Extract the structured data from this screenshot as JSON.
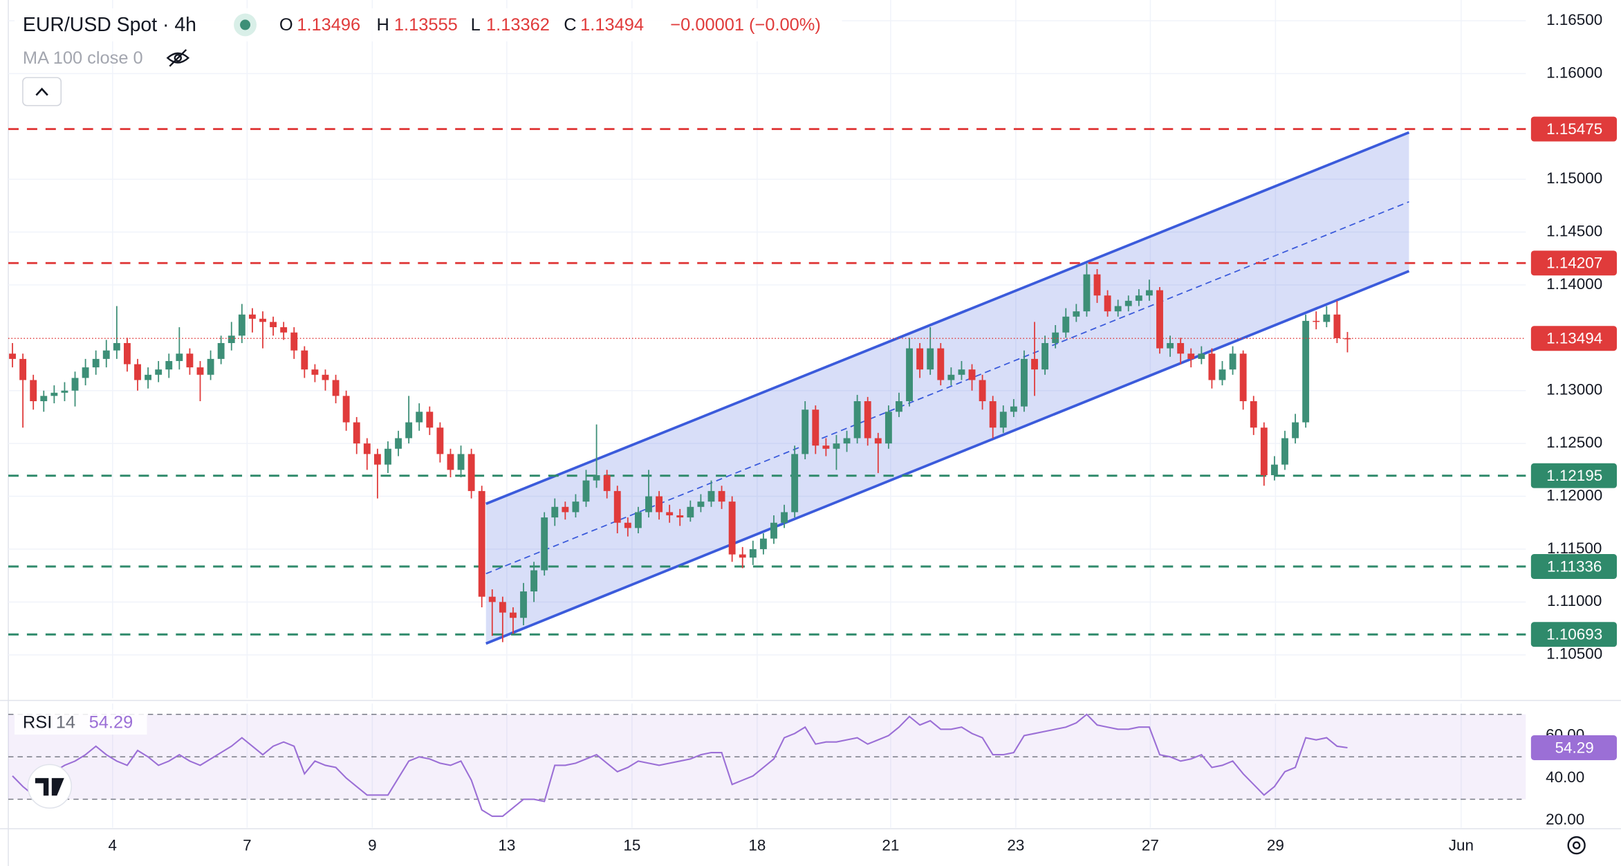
{
  "chart_data": {
    "type": "candlestick",
    "title": "EUR/USD Spot · 4h",
    "indicator_label": "MA 100 close 0",
    "header_letters": [
      "O",
      "H",
      "L",
      "C"
    ],
    "change": "−0.00001 (−0.00%)",
    "up_color": "#3d8f77",
    "down_color": "#e03b3b",
    "x": [
      0,
      1,
      2,
      3,
      4,
      5,
      6,
      7,
      8,
      9,
      10,
      11,
      12,
      13,
      14,
      15,
      16,
      17,
      18,
      19,
      20,
      21,
      22,
      23,
      24,
      25,
      26,
      27,
      28,
      29,
      30,
      31,
      32,
      33,
      34,
      35,
      36,
      37,
      38,
      39,
      40,
      41,
      42,
      43,
      44,
      45,
      46,
      47,
      48,
      49,
      50,
      51,
      52,
      53,
      54,
      55,
      56,
      57,
      58,
      59,
      60,
      61,
      62,
      63,
      64,
      65,
      66,
      67,
      68,
      69,
      70,
      71,
      72,
      73,
      74,
      75,
      76,
      77,
      78,
      79,
      80,
      81,
      82,
      83,
      84,
      85,
      86,
      87,
      88,
      89,
      90,
      91,
      92,
      93,
      94,
      95,
      96,
      97,
      98,
      99,
      100,
      101,
      102,
      103,
      104,
      105,
      106,
      107,
      108,
      109,
      110,
      111,
      112,
      113,
      114,
      115,
      116,
      117,
      118,
      119,
      120,
      121,
      122,
      123,
      124,
      125,
      126,
      127,
      128
    ],
    "open": [
      1.1335,
      1.133,
      1.131,
      1.129,
      1.1295,
      1.1298,
      1.13,
      1.1312,
      1.1322,
      1.133,
      1.1338,
      1.1345,
      1.1325,
      1.131,
      1.1315,
      1.132,
      1.1328,
      1.1335,
      1.1322,
      1.1315,
      1.133,
      1.1345,
      1.1352,
      1.1372,
      1.1368,
      1.1365,
      1.136,
      1.1355,
      1.1338,
      1.132,
      1.1315,
      1.131,
      1.1295,
      1.127,
      1.125,
      1.124,
      1.123,
      1.1245,
      1.1255,
      1.127,
      1.128,
      1.1265,
      1.124,
      1.1225,
      1.124,
      1.1205,
      1.1105,
      1.11,
      1.109,
      1.1085,
      1.111,
      1.113,
      1.118,
      1.119,
      1.1185,
      1.1195,
      1.1215,
      1.122,
      1.1205,
      1.1175,
      1.117,
      1.1185,
      1.12,
      1.1185,
      1.1182,
      1.118,
      1.119,
      1.1195,
      1.1205,
      1.1195,
      1.1145,
      1.1142,
      1.115,
      1.116,
      1.1175,
      1.1185,
      1.124,
      1.1282,
      1.1248,
      1.1245,
      1.125,
      1.1255,
      1.129,
      1.1255,
      1.125,
      1.128,
      1.129,
      1.134,
      1.132,
      1.134,
      1.131,
      1.1315,
      1.132,
      1.131,
      1.129,
      1.1265,
      1.128,
      1.1285,
      1.133,
      1.132,
      1.1345,
      1.1355,
      1.137,
      1.1375,
      1.141,
      1.139,
      1.1375,
      1.138,
      1.1385,
      1.139,
      1.1395,
      1.134,
      1.1345,
      1.1335,
      1.133,
      1.1335,
      1.131,
      1.132,
      1.1335,
      1.129,
      1.1265,
      1.122,
      1.123,
      1.1255,
      1.127,
      1.1366,
      1.1365,
      1.1372,
      1.13496
    ],
    "high": [
      1.1345,
      1.1335,
      1.1315,
      1.13,
      1.1305,
      1.1308,
      1.1318,
      1.133,
      1.1338,
      1.1348,
      1.138,
      1.135,
      1.133,
      1.1322,
      1.1328,
      1.1335,
      1.136,
      1.134,
      1.1328,
      1.1338,
      1.1352,
      1.1365,
      1.1382,
      1.1378,
      1.1375,
      1.137,
      1.1365,
      1.136,
      1.1342,
      1.1325,
      1.132,
      1.1315,
      1.13,
      1.1275,
      1.1255,
      1.1245,
      1.1252,
      1.1262,
      1.1295,
      1.1288,
      1.1285,
      1.127,
      1.1245,
      1.1248,
      1.1245,
      1.121,
      1.1112,
      1.1105,
      1.1095,
      1.1118,
      1.1138,
      1.1185,
      1.1198,
      1.1195,
      1.1202,
      1.1225,
      1.1268,
      1.1225,
      1.121,
      1.118,
      1.119,
      1.1225,
      1.1205,
      1.1192,
      1.1188,
      1.1196,
      1.1202,
      1.1215,
      1.121,
      1.12,
      1.1152,
      1.1158,
      1.1165,
      1.1182,
      1.1192,
      1.1248,
      1.129,
      1.1286,
      1.1255,
      1.1258,
      1.1262,
      1.1296,
      1.1294,
      1.126,
      1.1286,
      1.1298,
      1.135,
      1.1345,
      1.136,
      1.1345,
      1.1322,
      1.1328,
      1.1325,
      1.1315,
      1.1295,
      1.1286,
      1.1292,
      1.1338,
      1.1365,
      1.1352,
      1.1362,
      1.1378,
      1.1382,
      1.142,
      1.1415,
      1.1395,
      1.1386,
      1.139,
      1.1396,
      1.1405,
      1.1398,
      1.1352,
      1.135,
      1.134,
      1.1342,
      1.134,
      1.1328,
      1.1342,
      1.1338,
      1.1295,
      1.127,
      1.1238,
      1.1262,
      1.1278,
      1.1372,
      1.1375,
      1.138,
      1.1385,
      1.13555
    ],
    "low": [
      1.1322,
      1.1265,
      1.1282,
      1.128,
      1.1288,
      1.129,
      1.1285,
      1.1305,
      1.1315,
      1.1322,
      1.133,
      1.1318,
      1.13,
      1.1302,
      1.1308,
      1.1312,
      1.132,
      1.1315,
      1.129,
      1.131,
      1.1325,
      1.1338,
      1.1345,
      1.1355,
      1.134,
      1.1352,
      1.1348,
      1.133,
      1.1312,
      1.1308,
      1.13,
      1.1288,
      1.1262,
      1.124,
      1.1225,
      1.1198,
      1.1222,
      1.1238,
      1.125,
      1.1262,
      1.1258,
      1.1232,
      1.1218,
      1.1218,
      1.1198,
      1.1095,
      1.1068,
      1.1062,
      1.107,
      1.1078,
      1.11,
      1.1125,
      1.1172,
      1.1178,
      1.118,
      1.119,
      1.1208,
      1.1198,
      1.1165,
      1.1162,
      1.1165,
      1.118,
      1.1178,
      1.1175,
      1.1172,
      1.1176,
      1.1185,
      1.119,
      1.1188,
      1.1138,
      1.1132,
      1.1135,
      1.1145,
      1.1155,
      1.117,
      1.118,
      1.1235,
      1.124,
      1.1238,
      1.1225,
      1.1242,
      1.125,
      1.1248,
      1.1222,
      1.1245,
      1.1275,
      1.1285,
      1.1312,
      1.1315,
      1.1305,
      1.1305,
      1.131,
      1.13,
      1.1282,
      1.1255,
      1.126,
      1.1275,
      1.128,
      1.1295,
      1.1315,
      1.134,
      1.135,
      1.1365,
      1.137,
      1.1383,
      1.137,
      1.137,
      1.1375,
      1.138,
      1.1385,
      1.1335,
      1.1332,
      1.1325,
      1.1322,
      1.1325,
      1.1302,
      1.1305,
      1.1315,
      1.1282,
      1.1258,
      1.121,
      1.1215,
      1.1225,
      1.125,
      1.1265,
      1.1358,
      1.136,
      1.1345,
      1.13362
    ],
    "close": [
      1.133,
      1.131,
      1.129,
      1.1295,
      1.1298,
      1.13,
      1.1312,
      1.1322,
      1.133,
      1.1338,
      1.1345,
      1.1325,
      1.131,
      1.1315,
      1.132,
      1.1328,
      1.1335,
      1.1322,
      1.1315,
      1.133,
      1.1345,
      1.1352,
      1.1372,
      1.1368,
      1.1365,
      1.136,
      1.1355,
      1.1338,
      1.132,
      1.1315,
      1.131,
      1.1295,
      1.127,
      1.125,
      1.124,
      1.123,
      1.1245,
      1.1255,
      1.127,
      1.128,
      1.1265,
      1.124,
      1.1225,
      1.124,
      1.1205,
      1.1105,
      1.11,
      1.109,
      1.1085,
      1.111,
      1.113,
      1.118,
      1.119,
      1.1185,
      1.1195,
      1.1215,
      1.122,
      1.1205,
      1.1175,
      1.117,
      1.1185,
      1.12,
      1.1185,
      1.1182,
      1.118,
      1.119,
      1.1195,
      1.1205,
      1.1195,
      1.1145,
      1.1142,
      1.115,
      1.116,
      1.1175,
      1.1185,
      1.124,
      1.1282,
      1.1248,
      1.1245,
      1.125,
      1.1255,
      1.129,
      1.1255,
      1.125,
      1.128,
      1.129,
      1.134,
      1.132,
      1.134,
      1.131,
      1.1315,
      1.132,
      1.131,
      1.129,
      1.1265,
      1.128,
      1.1285,
      1.133,
      1.132,
      1.1345,
      1.1355,
      1.137,
      1.1375,
      1.141,
      1.139,
      1.1375,
      1.138,
      1.1385,
      1.139,
      1.1395,
      1.134,
      1.1345,
      1.1335,
      1.133,
      1.1335,
      1.131,
      1.132,
      1.1335,
      1.129,
      1.1265,
      1.122,
      1.123,
      1.1255,
      1.127,
      1.1366,
      1.1365,
      1.1372,
      1.13496,
      1.13494
    ],
    "xlim": [
      -0.4,
      145.1
    ],
    "xticks": [
      {
        "value": 9.6,
        "label": "4"
      },
      {
        "value": 22.5,
        "label": "7"
      },
      {
        "value": 34.5,
        "label": "9"
      },
      {
        "value": 47.4,
        "label": "13"
      },
      {
        "value": 59.4,
        "label": "15"
      },
      {
        "value": 71.4,
        "label": "18"
      },
      {
        "value": 84.2,
        "label": "21"
      },
      {
        "value": 96.2,
        "label": "23"
      },
      {
        "value": 109.1,
        "label": "27"
      },
      {
        "value": 121.1,
        "label": "29"
      },
      {
        "value": 138.9,
        "label": "Jun"
      }
    ],
    "ylim": [
      1.10088,
      1.16696
    ],
    "yticks": [
      {
        "value": 1.165,
        "label": "1.16500"
      },
      {
        "value": 1.16,
        "label": "1.16000"
      },
      {
        "value": 1.15,
        "label": "1.15000"
      },
      {
        "value": 1.145,
        "label": "1.14500"
      },
      {
        "value": 1.14,
        "label": "1.14000"
      },
      {
        "value": 1.13,
        "label": "1.13000"
      },
      {
        "value": 1.125,
        "label": "1.12500"
      },
      {
        "value": 1.12,
        "label": "1.12000"
      },
      {
        "value": 1.115,
        "label": "1.11500"
      },
      {
        "value": 1.11,
        "label": "1.11000"
      },
      {
        "value": 1.105,
        "label": "1.10500"
      }
    ],
    "grid": true,
    "levels": [
      {
        "value": 1.15475,
        "color": "#e03b3b"
      },
      {
        "value": 1.14207,
        "color": "#e03b3b"
      },
      {
        "value": 1.12195,
        "color": "#2f8a6b"
      },
      {
        "value": 1.11336,
        "color": "#2f8a6b"
      },
      {
        "value": 1.10693,
        "color": "#2f8a6b"
      }
    ],
    "channel": {
      "color": "#3b5bdb",
      "x": [
        45.4,
        133.9
      ],
      "upper": [
        1.11929,
        1.15443
      ],
      "middle": [
        1.11268,
        1.14787
      ],
      "lower": [
        1.10607,
        1.14131
      ]
    },
    "rsi": {
      "name": "RSI",
      "period": 14,
      "color": "#9b6fd6",
      "values": [
        41,
        36,
        32,
        38,
        43,
        46,
        48,
        51,
        55,
        51,
        48,
        46,
        53,
        50,
        46,
        48,
        51,
        48,
        46,
        49,
        52,
        55,
        59,
        55,
        51,
        55,
        57,
        55,
        42,
        48,
        46,
        45,
        40,
        36,
        32,
        32,
        32,
        40,
        48,
        50,
        49,
        47,
        46,
        48,
        39,
        25,
        22,
        22,
        26,
        30,
        30,
        29,
        46,
        46,
        47,
        49,
        51,
        47,
        43,
        45,
        48,
        47,
        46,
        47,
        48,
        49,
        51,
        52,
        52,
        37,
        39,
        41,
        45,
        49,
        59,
        61,
        64,
        56,
        57,
        57,
        58,
        59,
        56,
        58,
        60,
        64,
        69,
        65,
        67,
        63,
        63,
        64,
        61,
        59,
        51,
        51,
        52,
        60,
        61,
        62,
        63,
        64,
        66,
        70,
        65,
        64,
        63,
        63,
        64,
        64,
        51,
        50,
        48,
        49,
        51,
        45,
        46,
        48,
        42,
        37,
        32,
        36,
        43,
        45,
        59,
        58,
        59,
        55,
        54.29
      ],
      "ylim": [
        16.6,
        75.1
      ],
      "yticks": [
        {
          "value": 60,
          "label": "60.00"
        },
        {
          "value": 40,
          "label": "40.00"
        },
        {
          "value": 20,
          "label": "20.00"
        }
      ],
      "bands": [
        30,
        50,
        70
      ]
    }
  }
}
